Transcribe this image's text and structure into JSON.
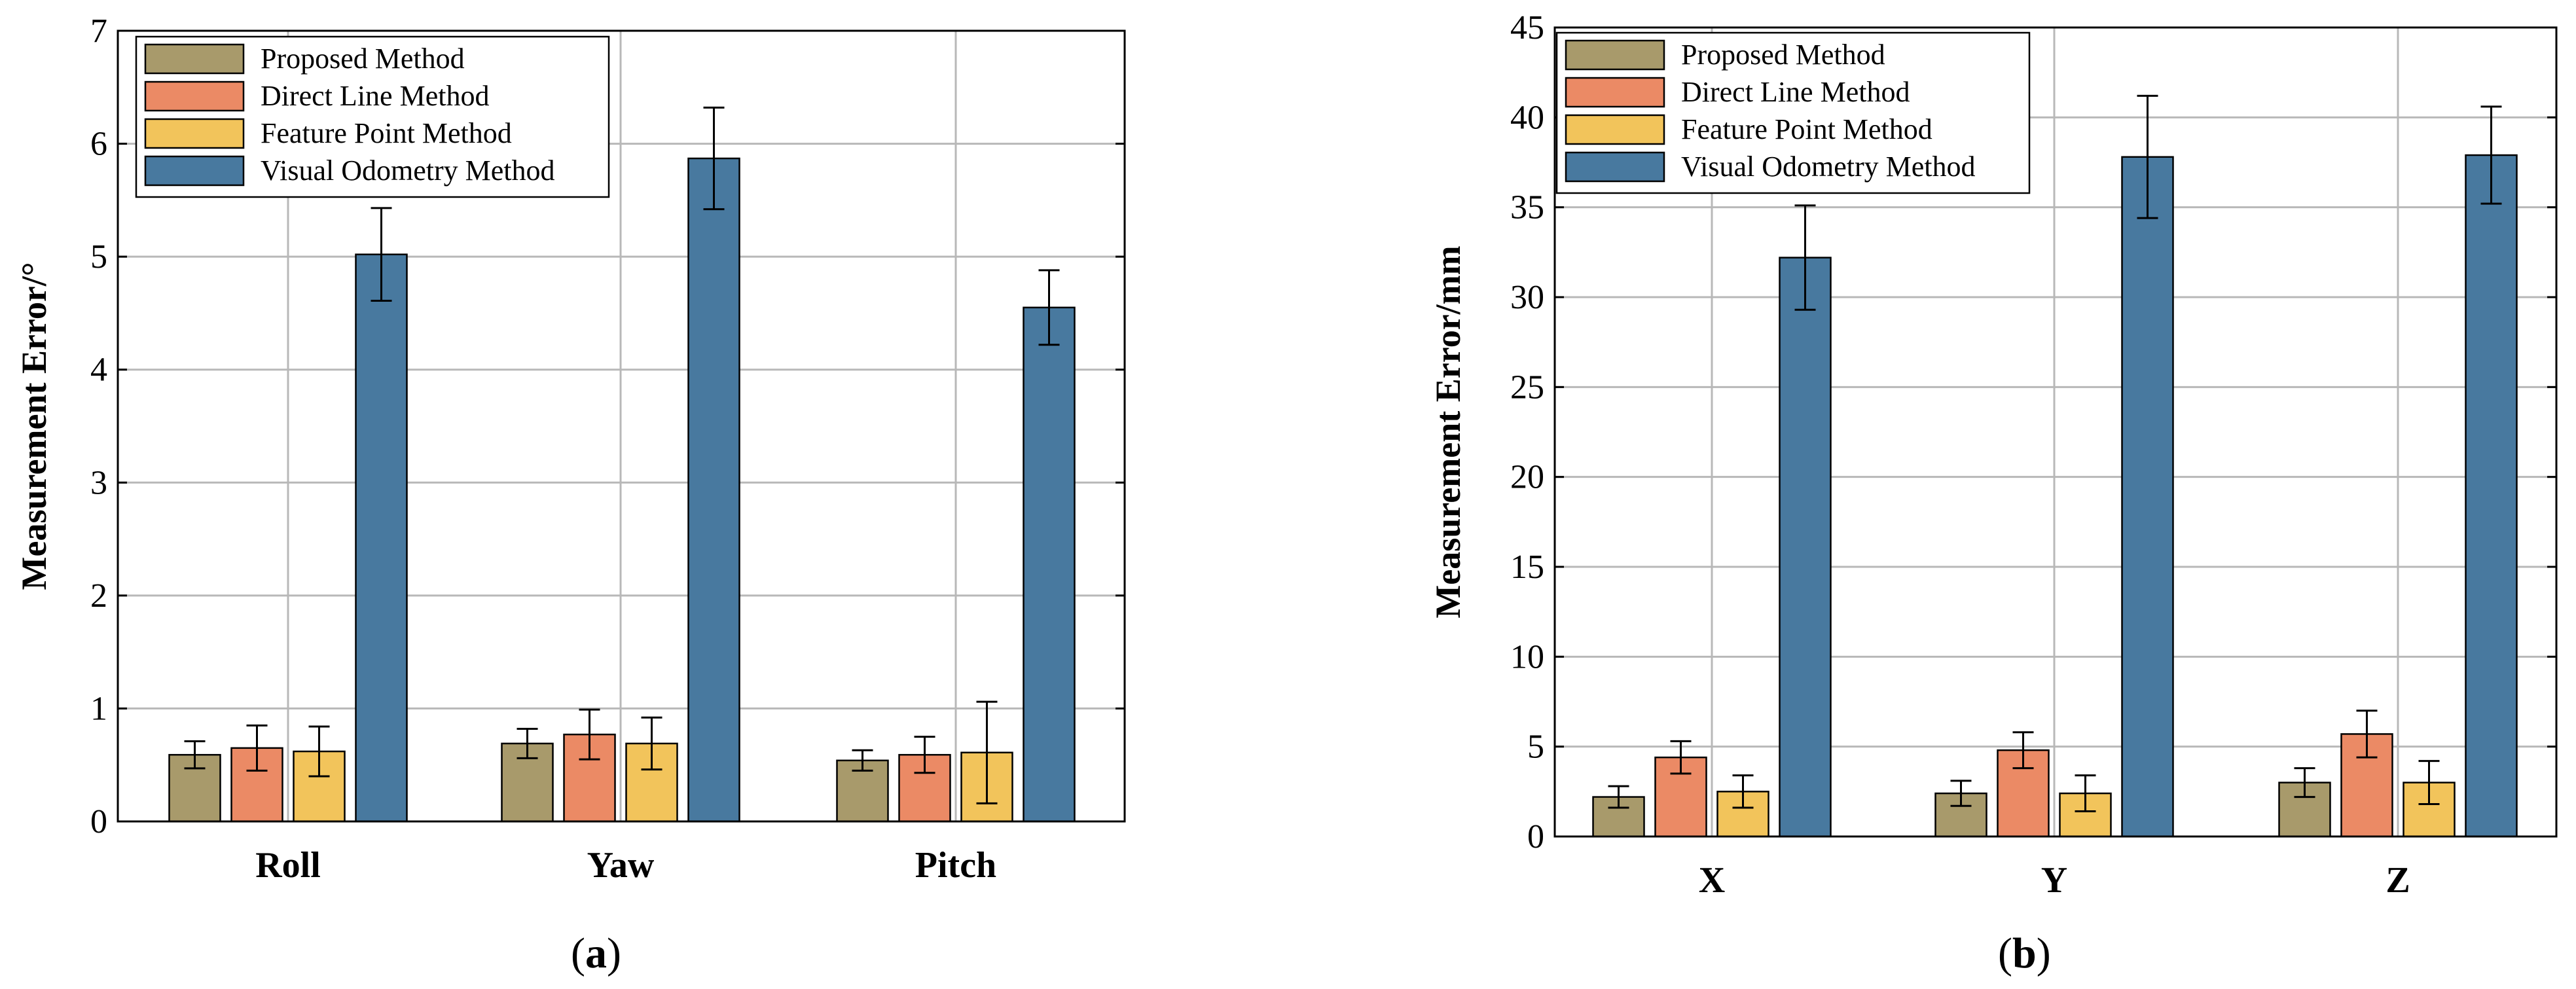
{
  "chart_data": [
    {
      "type": "bar",
      "panel_label": "a",
      "categories": [
        "Roll",
        "Yaw",
        "Pitch"
      ],
      "ylabel": "Measurement Error/°",
      "xlabel": "",
      "ylim": [
        0,
        7
      ],
      "yticks": [
        0,
        1,
        2,
        3,
        4,
        5,
        6,
        7
      ],
      "grid": true,
      "legend_position": "top-left",
      "series": [
        {
          "name": "Proposed Method",
          "color": "#A89A6B",
          "values": [
            0.59,
            0.69,
            0.54
          ],
          "errors": [
            0.12,
            0.13,
            0.09
          ]
        },
        {
          "name": "Direct Line Method",
          "color": "#EB8A65",
          "values": [
            0.65,
            0.77,
            0.59
          ],
          "errors": [
            0.2,
            0.22,
            0.16
          ]
        },
        {
          "name": "Feature Point Method",
          "color": "#F2C45B",
          "values": [
            0.62,
            0.69,
            0.61
          ],
          "errors": [
            0.22,
            0.23,
            0.45
          ]
        },
        {
          "name": "Visual Odometry Method",
          "color": "#48799F",
          "values": [
            5.02,
            5.87,
            4.55
          ],
          "errors": [
            0.41,
            0.45,
            0.33
          ]
        }
      ]
    },
    {
      "type": "bar",
      "panel_label": "b",
      "categories": [
        "X",
        "Y",
        "Z"
      ],
      "ylabel": "Measurement Error/mm",
      "xlabel": "",
      "ylim": [
        0,
        45
      ],
      "yticks": [
        0,
        5,
        10,
        15,
        20,
        25,
        30,
        35,
        40,
        45
      ],
      "grid": true,
      "legend_position": "top-left",
      "series": [
        {
          "name": "Proposed Method",
          "color": "#A89A6B",
          "values": [
            2.2,
            2.4,
            3.0
          ],
          "errors": [
            0.6,
            0.7,
            0.8
          ]
        },
        {
          "name": "Direct Line Method",
          "color": "#EB8A65",
          "values": [
            4.4,
            4.8,
            5.7
          ],
          "errors": [
            0.9,
            1.0,
            1.3
          ]
        },
        {
          "name": "Feature Point Method",
          "color": "#F2C45B",
          "values": [
            2.5,
            2.4,
            3.0
          ],
          "errors": [
            0.9,
            1.0,
            1.2
          ]
        },
        {
          "name": "Visual Odometry Method",
          "color": "#48799F",
          "values": [
            32.2,
            37.8,
            37.9
          ],
          "errors": [
            2.9,
            3.4,
            2.7
          ]
        }
      ]
    }
  ]
}
